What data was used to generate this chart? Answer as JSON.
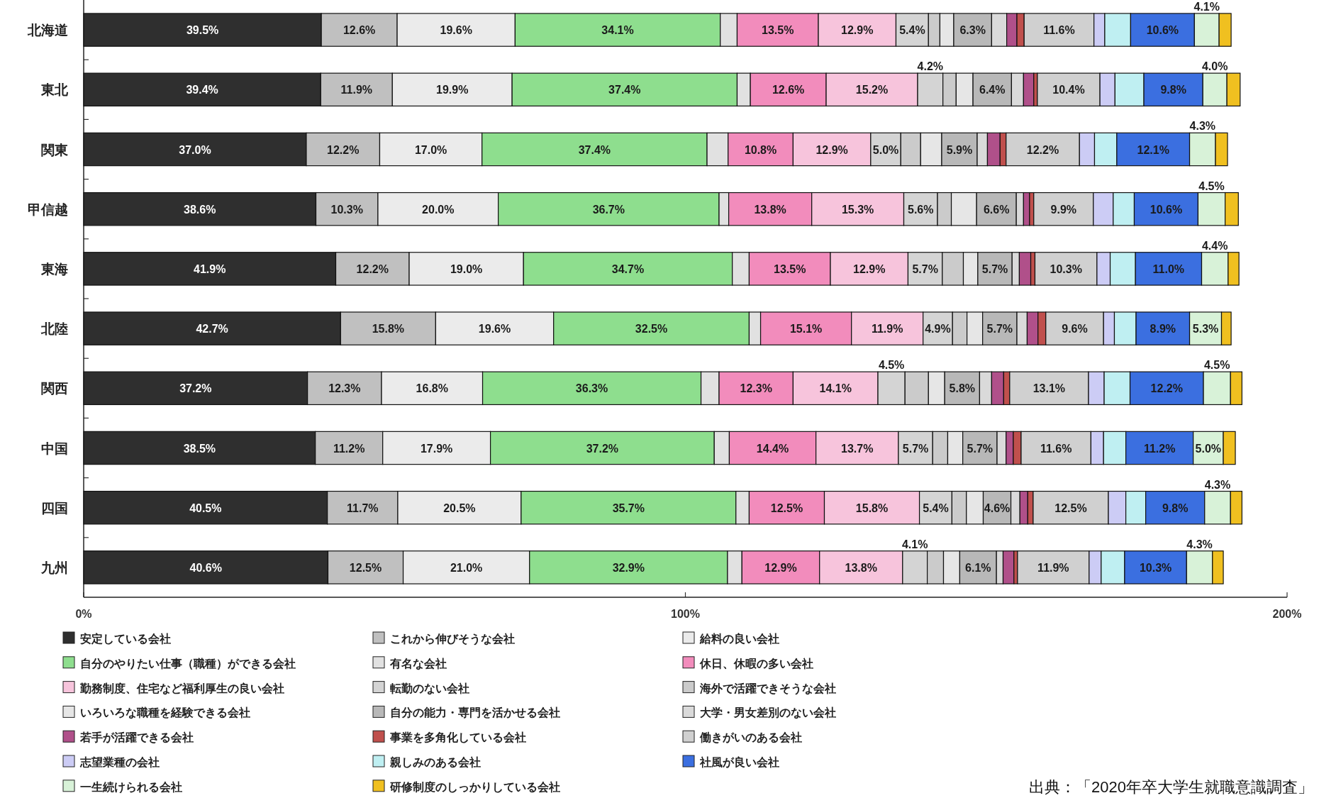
{
  "chart_data": {
    "type": "bar",
    "orientation": "horizontal",
    "stacked": true,
    "categories": [
      "北海道",
      "東北",
      "関東",
      "甲信越",
      "東海",
      "北陸",
      "関西",
      "中国",
      "四国",
      "九州"
    ],
    "xlim": [
      0,
      200
    ],
    "xticks": [
      {
        "value": 0,
        "label": "0%"
      },
      {
        "value": 100,
        "label": "100%"
      },
      {
        "value": 200,
        "label": "200%"
      }
    ],
    "legend": "bottom",
    "series": [
      {
        "name": "安定している会社",
        "color": "#2f2f2f",
        "values": [
          39.5,
          39.4,
          37.0,
          38.6,
          41.9,
          42.7,
          37.2,
          38.5,
          40.5,
          40.6
        ],
        "value_labels": [
          "39.5%",
          "39.4%",
          "37.0%",
          "38.6%",
          "41.9%",
          "42.7%",
          "37.2%",
          "38.5%",
          "40.5%",
          "40.6%"
        ]
      },
      {
        "name": "これから伸びそうな会社",
        "color": "#c0c0c0",
        "values": [
          12.6,
          11.9,
          12.2,
          10.3,
          12.2,
          15.8,
          12.3,
          11.2,
          11.7,
          12.5
        ],
        "value_labels": [
          "12.6%",
          "11.9%",
          "12.2%",
          "10.3%",
          "12.2%",
          "15.8%",
          "12.3%",
          "11.2%",
          "11.7%",
          "12.5%"
        ]
      },
      {
        "name": "給料の良い会社",
        "color": "#ebebeb",
        "values": [
          19.6,
          19.9,
          17.0,
          20.0,
          19.0,
          19.6,
          16.8,
          17.9,
          20.5,
          21.0
        ],
        "value_labels": [
          "19.6%",
          "19.9%",
          "17.0%",
          "20.0%",
          "19.0%",
          "19.6%",
          "16.8%",
          "17.9%",
          "20.5%",
          "21.0%"
        ]
      },
      {
        "name": "自分のやりたい仕事（職種）ができる会社",
        "color": "#8ede8e",
        "values": [
          34.1,
          37.4,
          37.4,
          36.7,
          34.7,
          32.5,
          36.3,
          37.2,
          35.7,
          32.9
        ],
        "value_labels": [
          "34.1%",
          "37.4%",
          "37.4%",
          "36.7%",
          "34.7%",
          "32.5%",
          "36.3%",
          "37.2%",
          "35.7%",
          "32.9%"
        ]
      },
      {
        "name": "有名な会社",
        "color": "#e1e1e1",
        "values": [
          2.8,
          2.2,
          3.5,
          1.6,
          2.8,
          1.9,
          3.0,
          2.5,
          2.2,
          2.4
        ]
      },
      {
        "name": "休日、休暇の多い会社",
        "color": "#f28cbc",
        "values": [
          13.5,
          12.6,
          10.8,
          13.8,
          13.5,
          15.1,
          12.3,
          14.4,
          12.5,
          12.9
        ],
        "value_labels": [
          "13.5%",
          "12.6%",
          "10.8%",
          "13.8%",
          "13.5%",
          "15.1%",
          "12.3%",
          "14.4%",
          "12.5%",
          "12.9%"
        ]
      },
      {
        "name": "勤務制度、住宅など福利厚生の良い会社",
        "color": "#f7c4dc",
        "values": [
          12.9,
          15.2,
          12.9,
          15.3,
          12.9,
          11.9,
          14.1,
          13.7,
          15.8,
          13.8
        ],
        "value_labels": [
          "12.9%",
          "15.2%",
          "12.9%",
          "15.3%",
          "12.9%",
          "11.9%",
          "14.1%",
          "13.7%",
          "15.8%",
          "13.8%"
        ]
      },
      {
        "name": "転勤のない会社",
        "color": "#d4d4d4",
        "values": [
          5.4,
          4.2,
          5.0,
          5.6,
          5.7,
          4.9,
          4.5,
          5.7,
          5.4,
          4.1
        ],
        "value_labels": [
          "5.4%",
          "4.2%",
          "5.0%",
          "5.6%",
          "5.7%",
          "4.9%",
          "4.5%",
          "5.7%",
          "5.4%",
          "4.1%"
        ]
      },
      {
        "name": "海外で活躍できそうな会社",
        "color": "#cbcbcb",
        "values": [
          1.9,
          2.2,
          3.3,
          2.3,
          3.5,
          2.4,
          3.9,
          2.5,
          2.4,
          2.7
        ]
      },
      {
        "name": "いろいろな職種を経験できる会社",
        "color": "#e6e6e6",
        "values": [
          2.3,
          2.8,
          3.5,
          4.2,
          2.4,
          2.6,
          2.7,
          2.5,
          2.8,
          2.7
        ]
      },
      {
        "name": "自分の能力・専門を活かせる会社",
        "color": "#b8b8b8",
        "values": [
          6.3,
          6.4,
          5.9,
          6.6,
          5.7,
          5.7,
          5.8,
          5.7,
          4.6,
          6.1
        ],
        "value_labels": [
          "6.3%",
          "6.4%",
          "5.9%",
          "6.6%",
          "5.7%",
          "5.7%",
          "5.8%",
          "5.7%",
          "4.6%",
          "6.1%"
        ]
      },
      {
        "name": "大学・男女差別のない会社",
        "color": "#dadada",
        "values": [
          2.5,
          2.0,
          1.7,
          1.2,
          1.2,
          1.7,
          2.0,
          1.5,
          1.5,
          1.1
        ]
      },
      {
        "name": "若手が活躍できる会社",
        "color": "#b0508a",
        "values": [
          1.7,
          1.7,
          2.1,
          1.0,
          1.9,
          1.8,
          2.0,
          1.2,
          1.3,
          1.8
        ]
      },
      {
        "name": "事業を多角化している会社",
        "color": "#c0504d",
        "values": [
          1.2,
          0.6,
          1.0,
          0.7,
          0.7,
          1.3,
          1.0,
          1.3,
          0.9,
          0.6
        ]
      },
      {
        "name": "働きがいのある会社",
        "color": "#d0d0d0",
        "values": [
          11.6,
          10.4,
          12.2,
          9.9,
          10.3,
          9.6,
          13.1,
          11.6,
          12.5,
          11.9
        ],
        "value_labels": [
          "11.6%",
          "10.4%",
          "12.2%",
          "9.9%",
          "10.3%",
          "9.6%",
          "13.1%",
          "11.6%",
          "12.5%",
          "11.9%"
        ]
      },
      {
        "name": "志望業種の会社",
        "color": "#ccccf5",
        "values": [
          1.8,
          2.5,
          2.5,
          3.3,
          2.2,
          1.8,
          2.6,
          2.1,
          2.9,
          2.0
        ]
      },
      {
        "name": "親しみのある会社",
        "color": "#bfeff2",
        "values": [
          4.3,
          4.8,
          3.7,
          3.5,
          4.2,
          3.6,
          4.3,
          3.7,
          3.3,
          3.9
        ]
      },
      {
        "name": "社風が良い会社",
        "color": "#3b6fe0",
        "values": [
          10.6,
          9.8,
          12.1,
          10.6,
          11.0,
          8.9,
          12.2,
          11.2,
          9.8,
          10.3
        ],
        "value_labels": [
          "10.6%",
          "9.8%",
          "12.1%",
          "10.6%",
          "11.0%",
          "8.9%",
          "12.2%",
          "11.2%",
          "9.8%",
          "10.3%"
        ]
      },
      {
        "name": "一生続けられる会社",
        "color": "#d8f2d8",
        "values": [
          4.1,
          4.0,
          4.3,
          4.5,
          4.4,
          5.3,
          4.5,
          5.0,
          4.3,
          4.3
        ],
        "value_labels": [
          "4.1%",
          "4.0%",
          "4.3%",
          "4.5%",
          "4.4%",
          "5.3%",
          "4.5%",
          "5.0%",
          "4.3%",
          "4.3%"
        ]
      },
      {
        "name": "研修制度のしっかりしている会社",
        "color": "#f0c020",
        "values": [
          2.0,
          2.2,
          2.0,
          2.2,
          1.8,
          1.6,
          1.9,
          2.0,
          1.9,
          1.8
        ]
      }
    ],
    "annotations": [
      "出典：「2020年卒大学生就職意識調査」"
    ]
  }
}
